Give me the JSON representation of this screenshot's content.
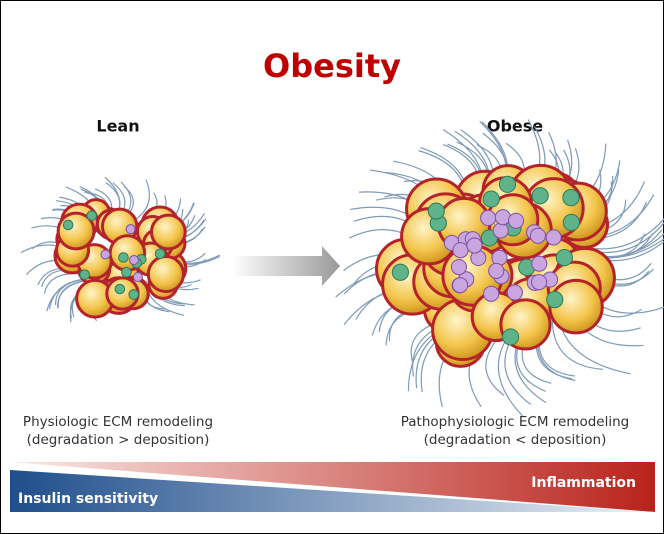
{
  "title": "Obesity",
  "panels": [
    {
      "label": "Lean",
      "caption": [
        "Physiologic ECM remodeling",
        "(degradation > deposition)"
      ]
    },
    {
      "label": "Obese",
      "caption": [
        "Pathophysiologic ECM remodeling",
        "(degradation < deposition)"
      ]
    }
  ],
  "gradient_bar": {
    "left_label": "Insulin sensitivity",
    "right_label": "Inflammation"
  }
}
